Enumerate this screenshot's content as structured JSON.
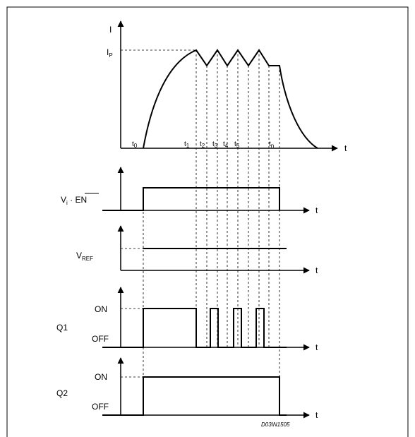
{
  "figure": {
    "reference_id": "D03IN1505"
  },
  "current_plot": {
    "y_axis_label": "I",
    "x_axis_label": "t",
    "peak_label": {
      "main": "I",
      "sub": "P"
    },
    "time_markers": [
      {
        "main": "t",
        "sub": "0"
      },
      {
        "main": "t",
        "sub": "1"
      },
      {
        "main": "t",
        "sub": "2"
      },
      {
        "main": "t",
        "sub": "3"
      },
      {
        "main": "t",
        "sub": "4"
      },
      {
        "main": "t",
        "sub": "5"
      },
      {
        "main": "t",
        "sub": "n"
      }
    ]
  },
  "signals": {
    "vi_en": {
      "label_pre": "V",
      "label_sub": "i",
      "label_mid": " · ",
      "label_over": "EN",
      "axis_label": "t"
    },
    "vref": {
      "label_main": "V",
      "label_sub": "REF",
      "axis_label": "t"
    },
    "q1": {
      "label": "Q1",
      "on_label": "ON",
      "off_label": "OFF",
      "axis_label": "t"
    },
    "q2": {
      "label": "Q2",
      "on_label": "ON",
      "off_label": "OFF",
      "axis_label": "t"
    }
  }
}
